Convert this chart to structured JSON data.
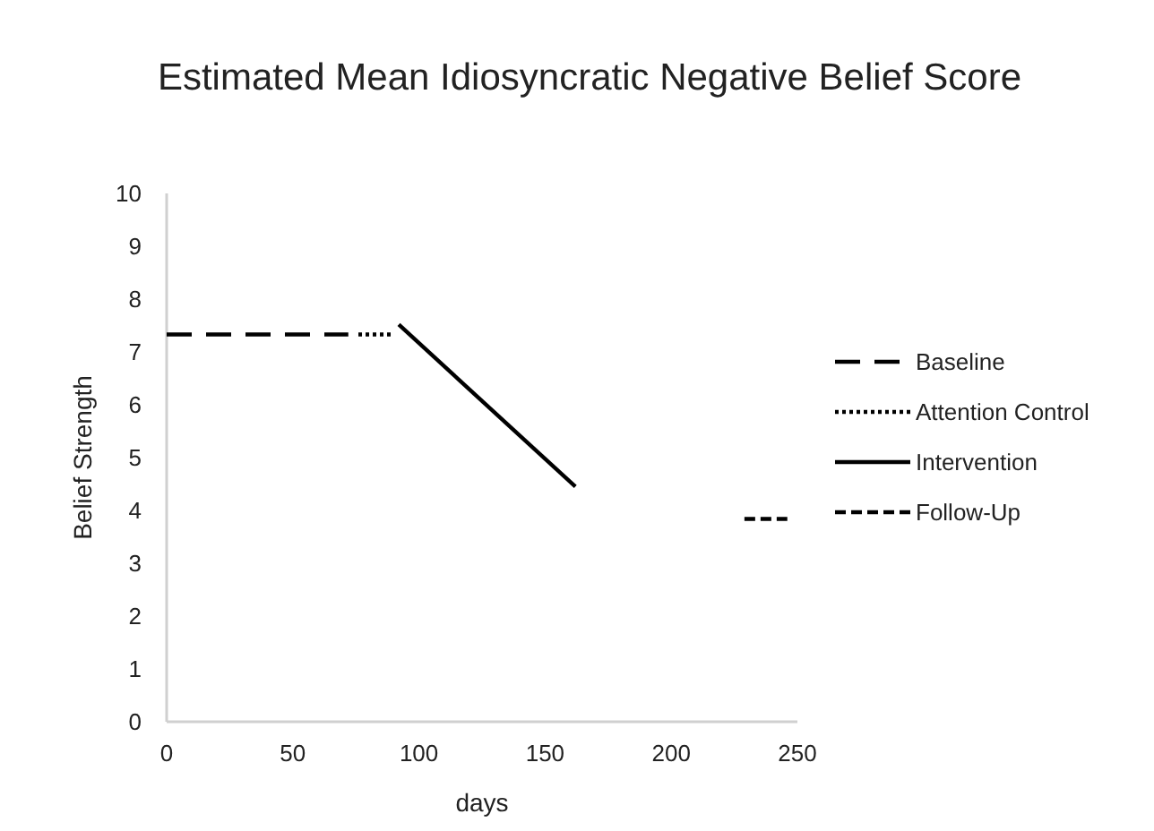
{
  "chart_data": {
    "type": "line",
    "title": "Estimated Mean Idiosyncratic Negative Belief Score",
    "xlabel": "days",
    "ylabel": "Belief Strength",
    "xlim": [
      0,
      250
    ],
    "xticks": [
      0,
      50,
      100,
      150,
      200,
      250
    ],
    "ylim": [
      0,
      10
    ],
    "yticks": [
      0,
      1,
      2,
      3,
      4,
      5,
      6,
      7,
      8,
      9,
      10
    ],
    "grid": false,
    "legend": "right",
    "marker": "none",
    "series": [
      {
        "name": "Baseline",
        "color": "#000000",
        "line_style": "longdash",
        "x": [
          0,
          72
        ],
        "values": [
          7.33,
          7.33
        ]
      },
      {
        "name": "Attention Control",
        "color": "#000000",
        "line_style": "dotted",
        "x": [
          76,
          89
        ],
        "values": [
          7.33,
          7.33
        ]
      },
      {
        "name": "Intervention",
        "color": "#000000",
        "line_style": "solid",
        "x": [
          92,
          162
        ],
        "values": [
          7.52,
          4.45
        ]
      },
      {
        "name": "Follow-Up",
        "color": "#000000",
        "line_style": "dashed",
        "x": [
          229,
          246
        ],
        "values": [
          3.84,
          3.84
        ]
      }
    ]
  }
}
